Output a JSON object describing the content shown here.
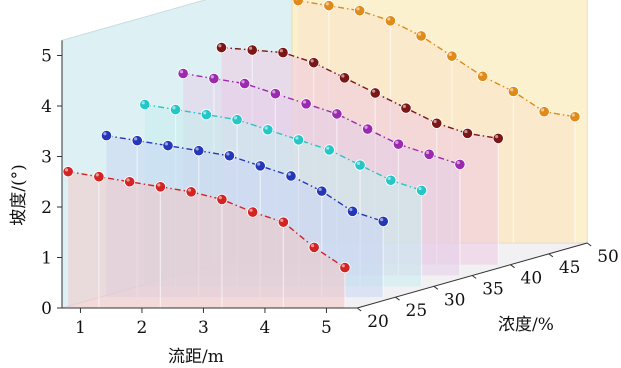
{
  "chart_data": {
    "type": "line",
    "title": "",
    "xlabel": "流距/m",
    "ylabel": "坡度/(°)",
    "zlabel": "浓度/%",
    "x": [
      0.8,
      1.3,
      1.8,
      2.3,
      2.8,
      3.3,
      3.8,
      4.3,
      4.8,
      5.3
    ],
    "x_ticks": [
      "1",
      "2",
      "3",
      "4",
      "5"
    ],
    "y_ticks": [
      "0",
      "1",
      "2",
      "3",
      "4",
      "5"
    ],
    "z_ticks": [
      "20",
      "25",
      "30",
      "35",
      "40",
      "45",
      "50"
    ],
    "xlim": [
      0.7,
      5.5
    ],
    "ylim": [
      0,
      5.3
    ],
    "zlim": [
      20,
      50
    ],
    "grid": false,
    "series": [
      {
        "name": "20",
        "color": "#d42323",
        "values": [
          2.7,
          2.6,
          2.5,
          2.4,
          2.3,
          2.15,
          1.9,
          1.7,
          1.2,
          0.8
        ]
      },
      {
        "name": "25",
        "color": "#2437b8",
        "values": [
          3.2,
          3.1,
          3.0,
          2.9,
          2.8,
          2.6,
          2.4,
          2.1,
          1.7,
          1.5
        ]
      },
      {
        "name": "30",
        "color": "#25c6c6",
        "values": [
          3.6,
          3.5,
          3.4,
          3.3,
          3.1,
          2.9,
          2.7,
          2.4,
          2.1,
          1.9
        ]
      },
      {
        "name": "35",
        "color": "#9c2ab0",
        "values": [
          4.0,
          3.9,
          3.8,
          3.6,
          3.4,
          3.2,
          2.9,
          2.6,
          2.4,
          2.2
        ]
      },
      {
        "name": "40",
        "color": "#7c1515",
        "values": [
          4.3,
          4.25,
          4.2,
          4.0,
          3.7,
          3.4,
          3.1,
          2.8,
          2.6,
          2.5
        ]
      },
      {
        "name": "50",
        "color": "#e08a1a",
        "values": [
          4.8,
          4.7,
          4.6,
          4.4,
          4.1,
          3.7,
          3.3,
          3.0,
          2.6,
          2.5
        ]
      }
    ]
  },
  "wall_colors": {
    "back": "#ddf1f4",
    "right": "#fbf1cf",
    "floor": "#f1f1f4",
    "panels": [
      "#f3c6c6",
      "#c8d5f2",
      "#c7ecef",
      "#e4cdea",
      "#eec9e2",
      "#f9e2c8"
    ]
  }
}
